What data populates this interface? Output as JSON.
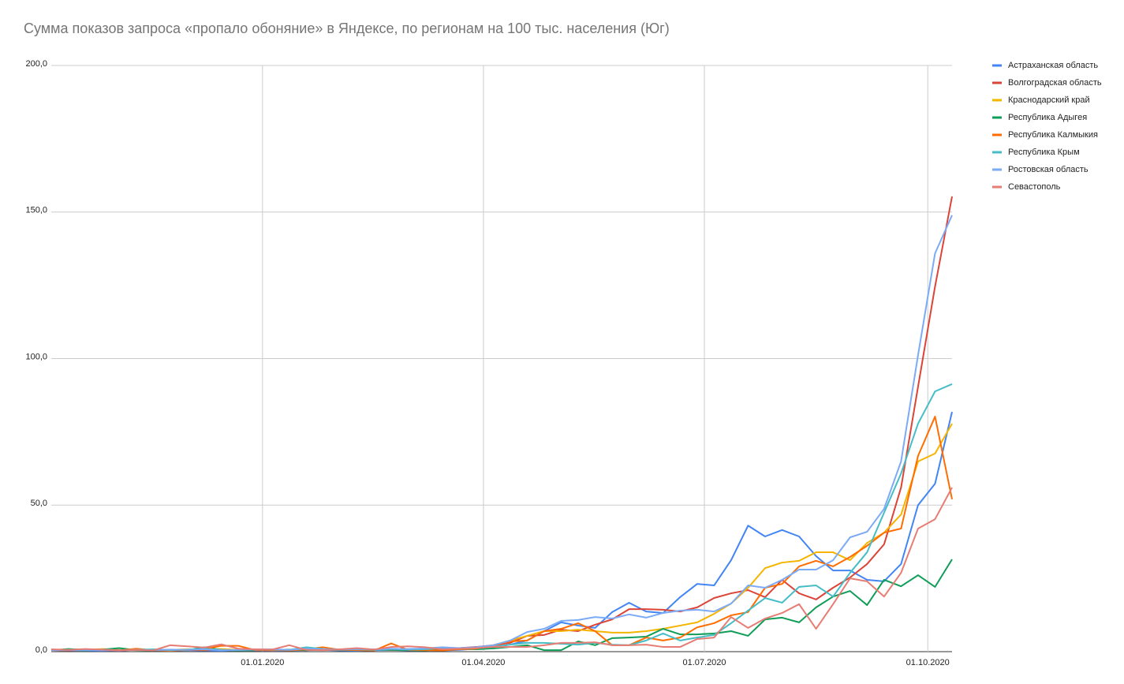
{
  "chart_data": {
    "type": "line",
    "title": "Сумма показов запроса «пропало обоняние» в Яндексе, по регионам на 100 тыс. населения (Юг)",
    "x": [
      "2019-10-06",
      "2019-10-13",
      "2019-10-20",
      "2019-10-27",
      "2019-11-03",
      "2019-11-10",
      "2019-11-17",
      "2019-11-24",
      "2019-12-01",
      "2019-12-08",
      "2019-12-15",
      "2019-12-22",
      "2019-12-29",
      "2020-01-05",
      "2020-01-12",
      "2020-01-19",
      "2020-01-26",
      "2020-02-02",
      "2020-02-09",
      "2020-02-16",
      "2020-02-23",
      "2020-03-01",
      "2020-03-08",
      "2020-03-15",
      "2020-03-22",
      "2020-03-29",
      "2020-04-05",
      "2020-04-12",
      "2020-04-19",
      "2020-04-26",
      "2020-05-03",
      "2020-05-10",
      "2020-05-17",
      "2020-05-24",
      "2020-05-31",
      "2020-06-07",
      "2020-06-14",
      "2020-06-21",
      "2020-06-28",
      "2020-07-05",
      "2020-07-12",
      "2020-07-19",
      "2020-07-26",
      "2020-08-02",
      "2020-08-09",
      "2020-08-16",
      "2020-08-23",
      "2020-08-30",
      "2020-09-06",
      "2020-09-13",
      "2020-09-20",
      "2020-09-27",
      "2020-10-04",
      "2020-10-11"
    ],
    "xlim": [
      "2019-10-06",
      "2020-10-11"
    ],
    "xticks": [
      {
        "value": "2020-01-01",
        "label": "01.01.2020"
      },
      {
        "value": "2020-04-01",
        "label": "01.04.2020"
      },
      {
        "value": "2020-07-01",
        "label": "01.07.2020"
      },
      {
        "value": "2020-10-01",
        "label": "01.10.2020"
      }
    ],
    "ylim": [
      0,
      200
    ],
    "yticks": [
      {
        "value": 0,
        "label": "0,0"
      },
      {
        "value": 50,
        "label": "50,0"
      },
      {
        "value": 100,
        "label": "100,0"
      },
      {
        "value": 150,
        "label": "150,0"
      },
      {
        "value": 200,
        "label": "200,0"
      }
    ],
    "grid": true,
    "legend": "right",
    "series": [
      {
        "name": "Астраханская область",
        "color": "#4285f4",
        "values": [
          0.3,
          0.5,
          0.4,
          0.3,
          0.5,
          0.6,
          0.4,
          0.3,
          0.5,
          0.4,
          0.3,
          0.5,
          0.4,
          0.3,
          0.4,
          0.5,
          0.6,
          0.4,
          0.3,
          0.5,
          0.6,
          0.4,
          0.5,
          0.4,
          0.6,
          1.0,
          1.6,
          2.4,
          3.8,
          7,
          10,
          8.9,
          8.1,
          13.5,
          16.7,
          13.7,
          13.2,
          18.6,
          23.1,
          22.6,
          31.2,
          43,
          39.3,
          41.5,
          39.3,
          32.6,
          27.7,
          27.7,
          24.5,
          24,
          29.9,
          50,
          57.3,
          81.8
        ]
      },
      {
        "name": "Волгоградская область",
        "color": "#db4437",
        "values": [
          0.5,
          0.4,
          0.6,
          0.5,
          0.3,
          0.7,
          0.5,
          0.4,
          0.6,
          0.5,
          0.8,
          0.6,
          0.5,
          0.4,
          0.6,
          0.5,
          0.7,
          0.6,
          0.5,
          0.8,
          0.6,
          0.5,
          0.7,
          0.8,
          1.2,
          1.6,
          2.2,
          3,
          5.4,
          5.7,
          7.5,
          7,
          9.2,
          11,
          14.5,
          14.5,
          14.3,
          13.7,
          15.1,
          18.3,
          19.9,
          21,
          18.6,
          24.5,
          19.9,
          17.8,
          21.8,
          25.3,
          29.9,
          36.6,
          56,
          90.4,
          124.6,
          155.3
        ]
      },
      {
        "name": "Краснодарский край",
        "color": "#f4b400",
        "values": [
          0.6,
          0.8,
          0.7,
          0.9,
          0.6,
          0.5,
          0.7,
          0.6,
          0.8,
          0.7,
          0.9,
          0.6,
          0.7,
          0.5,
          0.6,
          0.8,
          0.7,
          0.6,
          0.9,
          0.7,
          0.8,
          0.6,
          0.7,
          0.9,
          1.0,
          1,
          2.2,
          3.8,
          5.4,
          7,
          7,
          7.5,
          7,
          6.5,
          6.5,
          7,
          7.8,
          8.9,
          10,
          12.9,
          16.4,
          21.8,
          28.5,
          30.4,
          31,
          33.9,
          33.9,
          31.2,
          37.1,
          40.6,
          46.8,
          64.9,
          67.6,
          77.8
        ]
      },
      {
        "name": "Республика Адыгея",
        "color": "#0f9d58",
        "values": [
          0.4,
          0.9,
          0.6,
          0.7,
          1.2,
          0.5,
          0.4,
          0.6,
          0.5,
          1.5,
          0.6,
          0.4,
          0.5,
          0.6,
          0.7,
          0.5,
          0.8,
          0.6,
          0.5,
          0.7,
          0.6,
          0.5,
          0.4,
          0.8,
          0.9,
          0.8,
          1.1,
          1.6,
          2.2,
          0.5,
          0.5,
          3.5,
          2.2,
          4.6,
          4.8,
          5.1,
          7.8,
          5.9,
          5.9,
          6.2,
          7,
          5.4,
          11,
          11.6,
          10,
          15.1,
          18.8,
          20.7,
          15.9,
          24.5,
          22.3,
          26.1,
          22.1,
          31.5
        ]
      },
      {
        "name": "Республика Калмыкия",
        "color": "#ff6d00",
        "values": [
          0.3,
          0.5,
          0.8,
          0.6,
          0.4,
          1.0,
          0.5,
          0.3,
          0.6,
          0.8,
          2.0,
          2.0,
          0.5,
          0.6,
          0.4,
          0.8,
          1.5,
          0.6,
          0.5,
          0.4,
          2.8,
          0.6,
          0.5,
          0.4,
          0.8,
          1,
          2.2,
          3.5,
          3.8,
          7,
          7.8,
          9.7,
          7,
          2.2,
          2.2,
          4.8,
          3.8,
          4.8,
          8.3,
          9.7,
          12.4,
          13.5,
          21.8,
          23.1,
          29.1,
          31,
          29.1,
          32.3,
          36.1,
          40.6,
          42,
          66.8,
          80.2,
          52
        ]
      },
      {
        "name": "Республика Крым",
        "color": "#46bdc6",
        "values": [
          0.5,
          0.6,
          0.4,
          0.7,
          0.5,
          0.6,
          0.8,
          0.5,
          0.7,
          1.0,
          0.6,
          0.5,
          0.8,
          0.7,
          0.6,
          1.5,
          0.9,
          0.7,
          0.8,
          0.6,
          0.9,
          0.7,
          0.8,
          1.2,
          1.0,
          1.2,
          1.6,
          2.4,
          3,
          3,
          2.7,
          2.4,
          3,
          2.4,
          2.2,
          3.8,
          6.2,
          3.8,
          4.8,
          5.7,
          9.7,
          14,
          18.3,
          16.7,
          22.1,
          22.6,
          18.8,
          26.9,
          33.9,
          47.4,
          60.8,
          77.8,
          88.8,
          91.3
        ]
      },
      {
        "name": "Ростовская область",
        "color": "#7baaf7",
        "values": [
          0.4,
          0.5,
          0.6,
          0.5,
          0.4,
          0.6,
          0.5,
          0.7,
          0.6,
          0.8,
          0.5,
          0.6,
          0.7,
          0.8,
          0.6,
          1.0,
          0.8,
          0.7,
          0.9,
          0.8,
          1.0,
          0.9,
          1.1,
          1.5,
          1.2,
          1.5,
          2.2,
          3.8,
          6.7,
          7.8,
          10.5,
          10.8,
          11.8,
          11.3,
          12.7,
          11.6,
          13.2,
          14,
          14.3,
          13.7,
          16.4,
          22.6,
          21.8,
          24.5,
          28,
          28,
          31.2,
          39,
          40.9,
          48.7,
          64.9,
          101.2,
          135.9,
          148.9
        ]
      },
      {
        "name": "Севастополь",
        "color": "#e67c73",
        "values": [
          0.8,
          0.6,
          0.9,
          0.7,
          0.5,
          0.6,
          0.4,
          2.2,
          1.8,
          1.4,
          2.5,
          1.0,
          0.8,
          0.7,
          2.2,
          0.6,
          0.5,
          0.8,
          1.2,
          0.7,
          1.6,
          1.8,
          1.5,
          0.8,
          1.0,
          1.2,
          1.6,
          1.6,
          1.6,
          2.2,
          3,
          3,
          3.2,
          2.2,
          2.2,
          2.4,
          1.6,
          1.6,
          4.3,
          4.8,
          11.8,
          8.1,
          11.3,
          13.2,
          16.2,
          7.8,
          16.2,
          25,
          24,
          18.8,
          26.9,
          42,
          45.2,
          56
        ]
      }
    ]
  }
}
